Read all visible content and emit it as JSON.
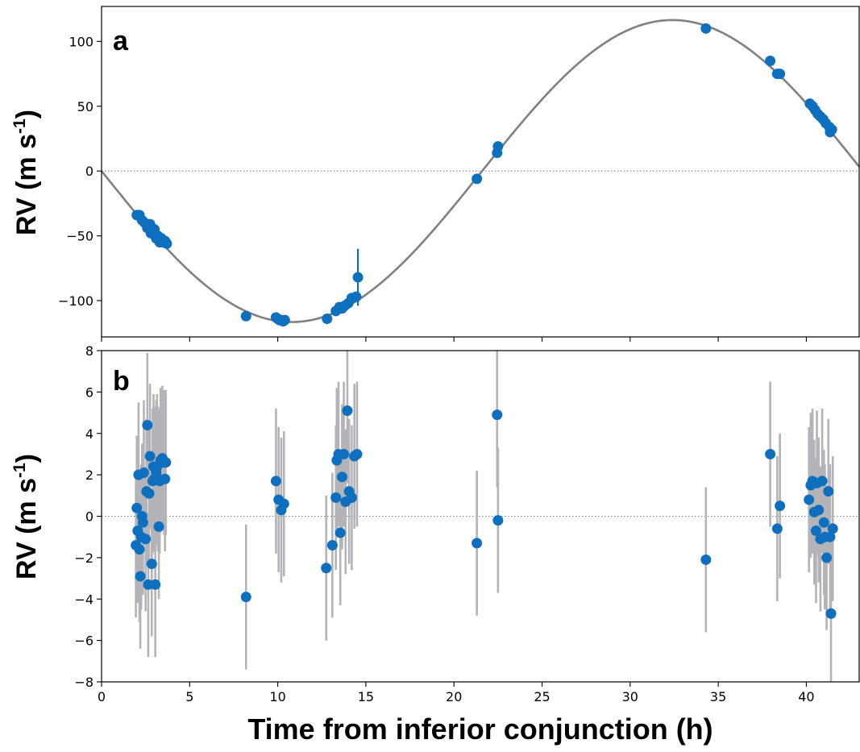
{
  "figure": {
    "xlabel": "Time from inferior conjunction (h)",
    "ylabel_main": "RV (m s",
    "ylabel_sup": "-1",
    "ylabel_close": ")"
  },
  "colors": {
    "points": "#0f6fbf",
    "errorbar_a": "#0f6fbf",
    "errorbar_b": "#b4b4b8",
    "model_curve": "#808080",
    "zero_line": "#808080"
  },
  "chart_data": [
    {
      "panel": "a",
      "type": "scatter",
      "title": "",
      "xlabel": "Time from inferior conjunction (h)",
      "ylabel": "RV (m s-1)",
      "xlim": [
        0,
        43
      ],
      "ylim": [
        -128,
        127
      ],
      "x_ticks": [
        0,
        5,
        10,
        15,
        20,
        25,
        30,
        35,
        40
      ],
      "y_ticks": [
        -100,
        -50,
        0,
        50,
        100
      ],
      "y_tick_labels": [
        "−100",
        "−50",
        "0",
        "50",
        "100"
      ],
      "grid": false,
      "zero_line": true,
      "model": {
        "type": "sinusoid",
        "semi_amplitude": 116.5,
        "period_h": 43.2,
        "equation": "RV = -K sin(2π t / P)"
      },
      "series": [
        {
          "x": [
            2.0,
            2.15,
            2.3,
            2.45,
            2.6,
            2.75,
            2.8,
            2.9,
            3.0,
            3.1,
            3.2,
            3.3,
            3.4,
            3.5,
            3.6,
            3.7,
            8.2,
            9.9,
            10.0,
            10.1,
            10.2,
            10.3,
            10.4,
            12.8,
            13.3,
            13.5,
            13.65,
            13.8,
            14.0,
            14.2,
            14.45,
            14.55,
            21.3,
            22.45,
            22.5,
            34.3,
            37.95,
            38.35,
            38.5,
            40.2,
            40.35,
            40.5,
            40.65,
            40.8,
            40.95,
            41.1,
            41.3,
            41.35,
            41.45
          ],
          "y": [
            -34,
            -34,
            -38,
            -40,
            -44,
            -41,
            -48,
            -47,
            -45,
            -52,
            -50,
            -55,
            -52,
            -55,
            -54,
            -56,
            -112,
            -113,
            -114,
            -115,
            -115,
            -116,
            -115,
            -114,
            -108,
            -105,
            -106,
            -104,
            -102,
            -98,
            -97,
            -82,
            -6,
            14,
            19,
            110,
            85,
            75,
            75,
            52,
            50,
            47,
            44,
            42,
            40,
            37,
            34,
            30,
            32
          ],
          "yerr": [
            1.5,
            1.5,
            1.5,
            1.5,
            1.5,
            1.5,
            1.5,
            1.5,
            1.5,
            1.5,
            1.5,
            1.5,
            1.5,
            1.5,
            1.5,
            1.5,
            2.0,
            1.5,
            1.5,
            1.5,
            1.5,
            1.5,
            1.5,
            2.0,
            3.5,
            3.0,
            3.0,
            3.0,
            3.0,
            3.0,
            3.0,
            22.0,
            2.0,
            2.0,
            2.0,
            2.0,
            2.0,
            2.0,
            2.0,
            1.5,
            1.5,
            1.5,
            1.5,
            1.5,
            1.5,
            1.5,
            1.5,
            1.5,
            1.5
          ]
        }
      ]
    },
    {
      "panel": "b",
      "type": "scatter",
      "title": "",
      "xlabel": "Time from inferior conjunction (h)",
      "ylabel": "RV (m s-1)",
      "xlim": [
        0,
        43
      ],
      "ylim": [
        -8,
        8
      ],
      "x_ticks": [
        0,
        5,
        10,
        15,
        20,
        25,
        30,
        35,
        40
      ],
      "y_ticks": [
        -8,
        -6,
        -4,
        -2,
        0,
        2,
        4,
        6,
        8
      ],
      "y_tick_labels": [
        "−8",
        "−6",
        "−4",
        "−2",
        "0",
        "2",
        "4",
        "6",
        "8"
      ],
      "grid": false,
      "zero_line": true,
      "series": [
        {
          "x": [
            1.95,
            2.0,
            2.05,
            2.1,
            2.15,
            2.2,
            2.25,
            2.3,
            2.35,
            2.4,
            2.5,
            2.55,
            2.6,
            2.65,
            2.7,
            2.75,
            2.85,
            2.9,
            2.95,
            3.0,
            3.05,
            3.1,
            3.15,
            3.2,
            3.25,
            3.3,
            3.35,
            3.45,
            3.55,
            3.6,
            3.65,
            8.2,
            9.9,
            10.05,
            10.2,
            10.35,
            12.75,
            13.1,
            13.3,
            13.35,
            13.45,
            13.55,
            13.65,
            13.75,
            13.85,
            13.95,
            14.05,
            14.2,
            14.35,
            14.5,
            21.3,
            22.45,
            22.5,
            34.3,
            37.95,
            38.35,
            38.5,
            40.15,
            40.25,
            40.35,
            40.45,
            40.55,
            40.6,
            40.7,
            40.8,
            40.9,
            41.0,
            41.05,
            41.15,
            41.25,
            41.35,
            41.4,
            41.5
          ],
          "y": [
            -1.4,
            0.4,
            -0.7,
            2.0,
            -1.6,
            -2.9,
            -1.0,
            0.0,
            -0.3,
            2.1,
            -1.1,
            1.2,
            4.4,
            -3.3,
            1.1,
            2.9,
            -2.3,
            1.7,
            2.4,
            1.8,
            -3.3,
            2.1,
            2.4,
            1.8,
            -0.5,
            1.7,
            2.7,
            2.8,
            2.6,
            1.8,
            2.6,
            -3.9,
            1.7,
            0.8,
            0.3,
            0.6,
            -2.5,
            -1.4,
            0.9,
            2.7,
            3.0,
            -0.8,
            1.9,
            3.0,
            0.7,
            5.1,
            1.2,
            0.9,
            2.9,
            3.0,
            -1.3,
            4.9,
            -0.2,
            -2.1,
            3.0,
            -0.6,
            0.5,
            0.8,
            1.5,
            1.7,
            0.2,
            -0.7,
            1.6,
            0.3,
            -1.1,
            1.7,
            -0.3,
            -1.0,
            -2.0,
            1.2,
            -1.0,
            -4.7,
            -0.6
          ],
          "yerr": [
            3.5,
            3.5,
            3.5,
            3.5,
            3.5,
            3.5,
            3.5,
            3.5,
            3.5,
            3.5,
            3.5,
            3.5,
            3.5,
            3.5,
            3.5,
            3.5,
            3.5,
            3.5,
            3.5,
            3.5,
            3.5,
            3.5,
            3.5,
            3.5,
            3.5,
            3.5,
            3.5,
            3.5,
            3.5,
            3.5,
            3.5,
            3.5,
            3.5,
            3.5,
            3.5,
            3.5,
            3.5,
            3.5,
            3.5,
            3.5,
            3.5,
            3.5,
            3.5,
            3.5,
            3.5,
            3.5,
            3.5,
            3.5,
            3.5,
            3.5,
            3.5,
            3.5,
            3.5,
            3.5,
            3.5,
            3.5,
            3.5,
            3.5,
            3.5,
            3.5,
            3.5,
            3.5,
            3.5,
            3.5,
            3.5,
            3.5,
            3.5,
            3.5,
            3.5,
            3.5,
            3.5,
            3.5,
            3.5
          ]
        }
      ]
    }
  ]
}
